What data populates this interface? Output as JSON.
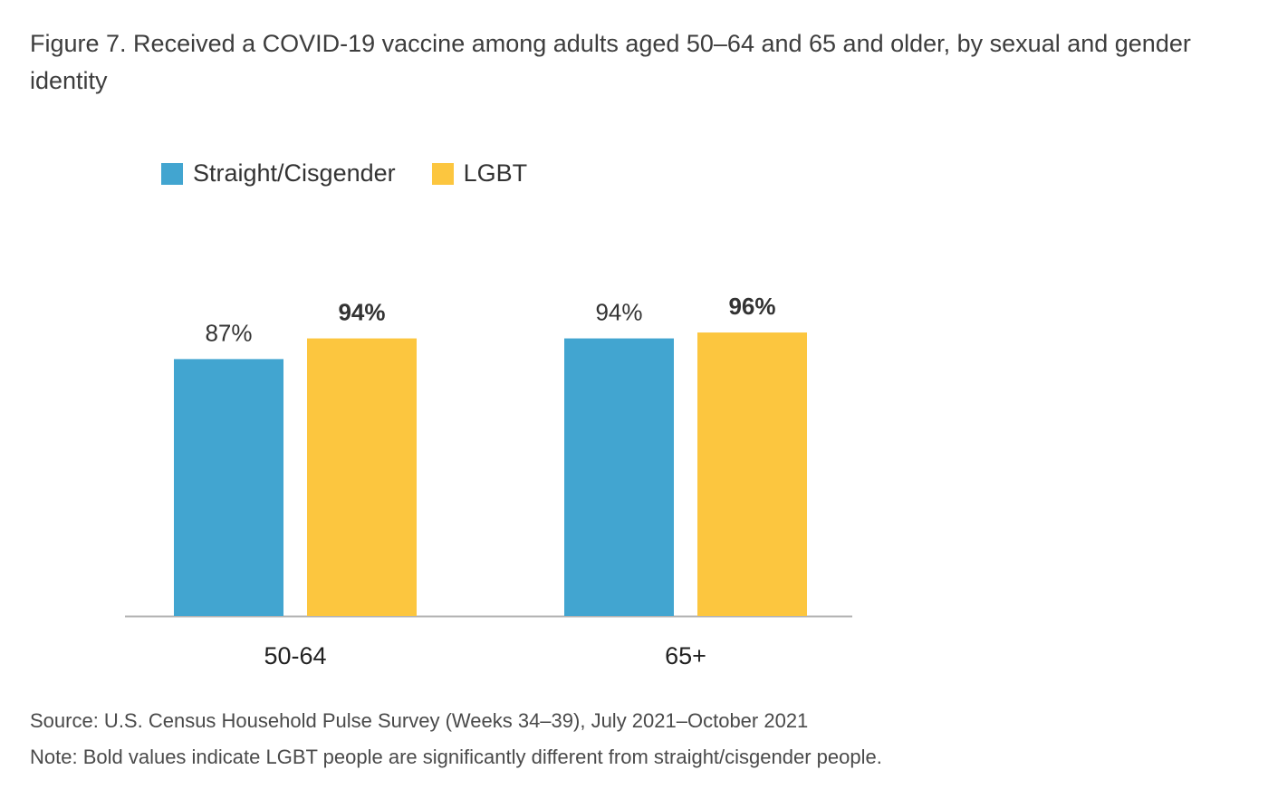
{
  "title": "Figure 7. Received a COVID-19 vaccine among adults aged 50–64 and 65 and older, by sexual and gender identity",
  "source": "Source: U.S. Census Household Pulse Survey (Weeks 34–39), July 2021–October 2021",
  "note": "Note: Bold values indicate LGBT people are significantly different from straight/cisgender people.",
  "colors": {
    "straight_cisgender": "#42a5d0",
    "lgbt": "#fcc63f",
    "axis": "#b3b3b3",
    "label": "#333333"
  },
  "chart_data": {
    "type": "bar",
    "title": "Figure 7. Received a COVID-19 vaccine among adults aged 50–64 and 65 and older, by sexual and gender identity",
    "xlabel": "",
    "ylabel": "",
    "categories": [
      "50-64",
      "65+"
    ],
    "series": [
      {
        "name": "Straight/Cisgender",
        "values": [
          87,
          94
        ],
        "labels": [
          "87%",
          "94%"
        ],
        "bold": [
          false,
          false
        ]
      },
      {
        "name": "LGBT",
        "values": [
          94,
          96
        ],
        "labels": [
          "94%",
          "96%"
        ],
        "bold": [
          true,
          true
        ]
      }
    ],
    "grid": false,
    "legend_position": "top-left"
  }
}
